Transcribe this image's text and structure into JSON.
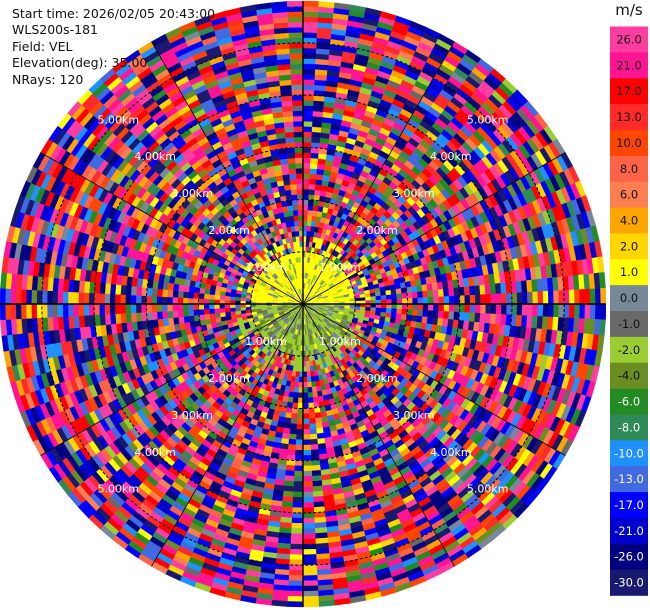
{
  "header": {
    "start_time": "Start time: 2026/02/05 20:43:00",
    "instrument": "WLS200s-181",
    "field": "Field: VEL",
    "elevation": "Elevation(deg): 35.00",
    "nrays": "NRays: 120"
  },
  "chart_data": {
    "type": "heatmap",
    "projection": "polar-ppi",
    "field": "VEL",
    "units": "m/s",
    "n_rays": 120,
    "elevation_deg": 35.0,
    "range_rings_km": [
      1.0,
      2.0,
      3.0,
      4.0,
      5.0
    ],
    "ring_label_texts": [
      "1.00km",
      "2.00km",
      "3.00km",
      "4.00km",
      "5.00km"
    ],
    "max_range_km": 5.8,
    "gate_spacing_km": 0.1,
    "colorbar": {
      "label": "m/s",
      "tick_labels": [
        "26.0",
        "21.0",
        "17.0",
        "13.0",
        "10.0",
        "8.0",
        "6.0",
        "4.0",
        "2.0",
        "1.0",
        "0.0",
        "-1.0",
        "-2.0",
        "-4.0",
        "-6.0",
        "-8.0",
        "-10.0",
        "-13.0",
        "-17.0",
        "-21.0",
        "-26.0",
        "-30.0"
      ],
      "bins": [
        {
          "lo": 26,
          "hi": 30,
          "color": "#ff3ca0"
        },
        {
          "lo": 21,
          "hi": 26,
          "color": "#ff1493"
        },
        {
          "lo": 17,
          "hi": 21,
          "color": "#ff0000"
        },
        {
          "lo": 13,
          "hi": 17,
          "color": "#ff2a2a"
        },
        {
          "lo": 10,
          "hi": 13,
          "color": "#ff4500"
        },
        {
          "lo": 8,
          "hi": 10,
          "color": "#ff6347"
        },
        {
          "lo": 6,
          "hi": 8,
          "color": "#ff7f50"
        },
        {
          "lo": 4,
          "hi": 6,
          "color": "#ffa500"
        },
        {
          "lo": 2,
          "hi": 4,
          "color": "#ffd700"
        },
        {
          "lo": 1,
          "hi": 2,
          "color": "#ffff00"
        },
        {
          "lo": 0,
          "hi": 1,
          "color": "#778899"
        },
        {
          "lo": -1,
          "hi": 0,
          "color": "#696969"
        },
        {
          "lo": -2,
          "hi": -1,
          "color": "#9acd32"
        },
        {
          "lo": -4,
          "hi": -2,
          "color": "#6b8e23"
        },
        {
          "lo": -6,
          "hi": -4,
          "color": "#228b22"
        },
        {
          "lo": -8,
          "hi": -6,
          "color": "#2e8b57"
        },
        {
          "lo": -10,
          "hi": -8,
          "color": "#1e90ff"
        },
        {
          "lo": -13,
          "hi": -10,
          "color": "#4169e1"
        },
        {
          "lo": -17,
          "hi": -13,
          "color": "#0000ff"
        },
        {
          "lo": -21,
          "hi": -17,
          "color": "#0000cd"
        },
        {
          "lo": -26,
          "hi": -21,
          "color": "#000080"
        },
        {
          "lo": -30,
          "hi": -26,
          "color": "#191970"
        }
      ]
    },
    "regions": [
      {
        "from_km": 0.0,
        "to_km": 1.0,
        "sector_deg": [
          270,
          90
        ],
        "dominant_ms": [
          1,
          2
        ],
        "note": "north half near radar mostly yellow"
      },
      {
        "from_km": 0.0,
        "to_km": 1.0,
        "sector_deg": [
          90,
          270
        ],
        "dominant_ms": [
          -4,
          0
        ],
        "note": "south half near radar mostly olive/green/grey"
      },
      {
        "from_km": 1.0,
        "to_km": 5.8,
        "sector_deg": [
          0,
          360
        ],
        "dominant_ms": [
          -30,
          30
        ],
        "note": "noise, all bins"
      }
    ]
  }
}
